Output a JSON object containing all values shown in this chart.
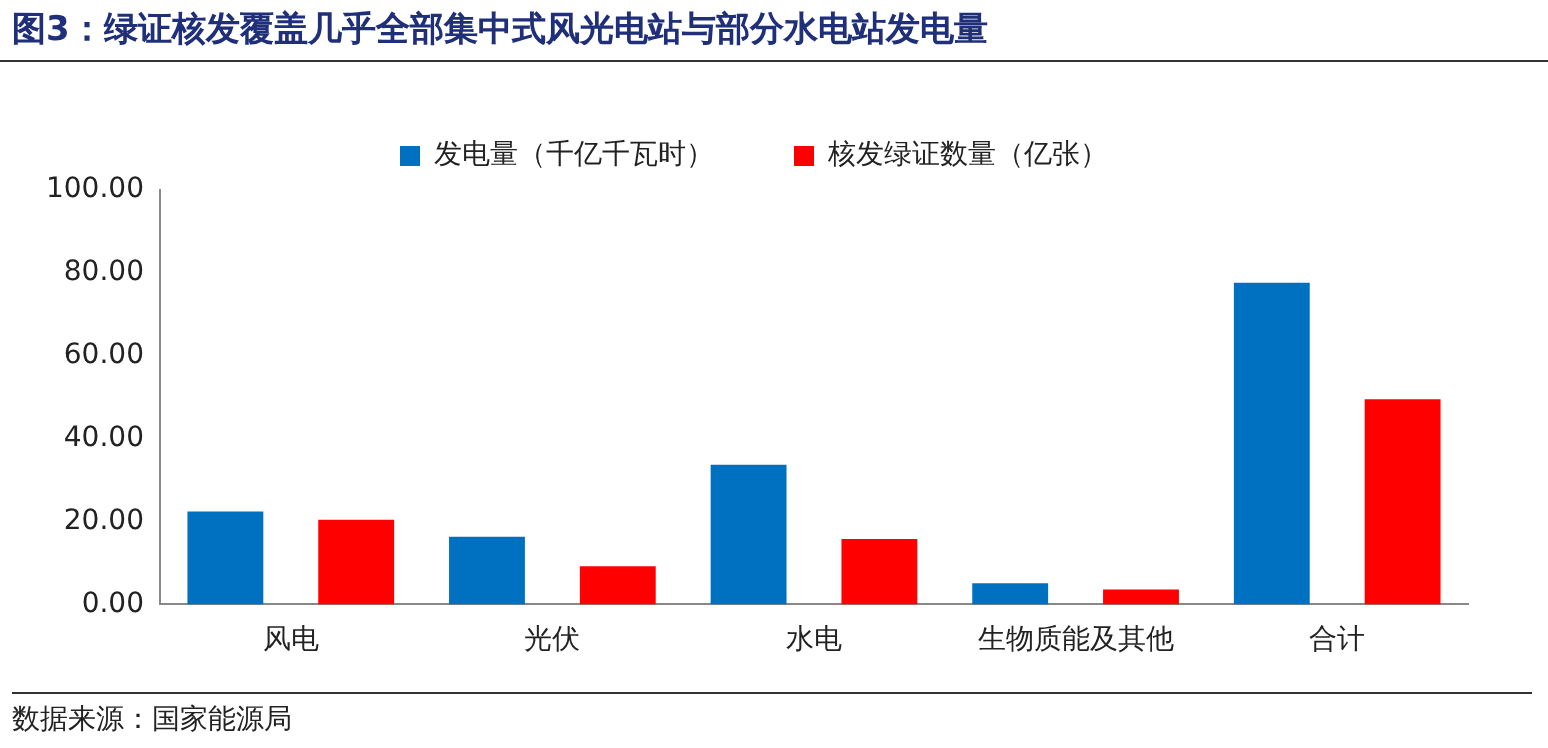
{
  "chart_data": {
    "type": "bar",
    "title": "图3：绿证核发覆盖几乎全部集中式风光电站与部分水电站发电量",
    "categories": [
      "风电",
      "光伏",
      "水电",
      "生物质能及其他",
      "合计"
    ],
    "series": [
      {
        "name": "发电量（千亿千瓦时）",
        "color": "#0070c0",
        "values": [
          22.4,
          16.3,
          33.7,
          5.1,
          77.6
        ]
      },
      {
        "name": "核发绿证数量（亿张）",
        "color": "#ff0000",
        "values": [
          20.4,
          9.2,
          15.8,
          3.6,
          49.5
        ]
      }
    ],
    "ylim": [
      0,
      100
    ],
    "yticks": [
      {
        "value": 0,
        "label": "0.00"
      },
      {
        "value": 20,
        "label": "20.00"
      },
      {
        "value": 40,
        "label": "40.00"
      },
      {
        "value": 60,
        "label": "60.00"
      },
      {
        "value": 80,
        "label": "80.00"
      },
      {
        "value": 100,
        "label": "100.00"
      }
    ],
    "grid": false,
    "legend": "top",
    "annotations": [
      "数据来源：国家能源局"
    ]
  }
}
